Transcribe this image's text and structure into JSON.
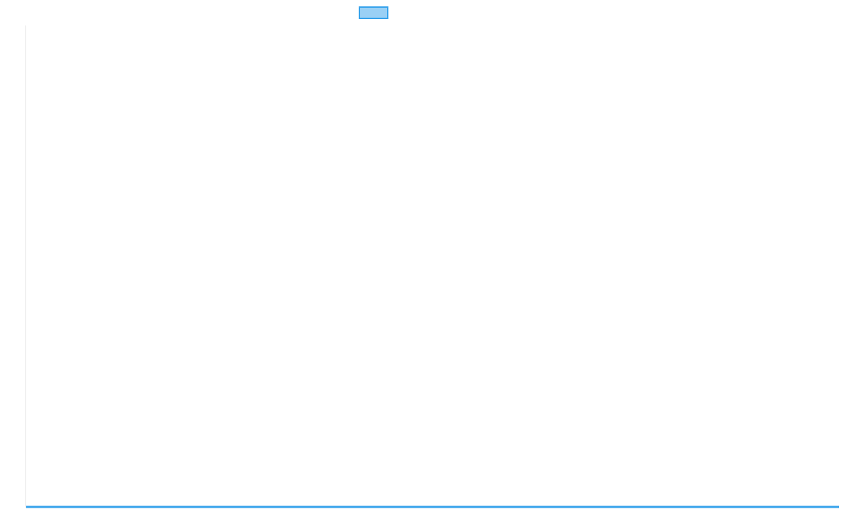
{
  "chart_data": {
    "type": "line",
    "title": "",
    "xlabel": "",
    "ylabel": "",
    "categories": [
      "",
      ""
    ],
    "series": [
      {
        "label": "",
        "values": [
          0,
          0
        ],
        "color": "#36a2eb",
        "fill": "#9ad0f5"
      }
    ],
    "legend": "top",
    "grid": false
  }
}
